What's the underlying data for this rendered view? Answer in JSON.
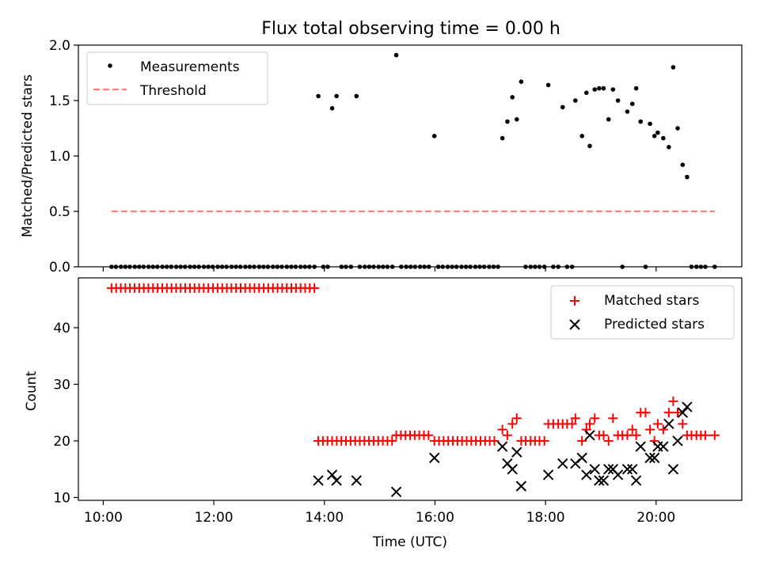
{
  "chart_data": [
    {
      "type": "scatter",
      "title": "Flux total observing time = 0.00 h",
      "xlabel": "",
      "ylabel": "Matched/Predicted stars",
      "xlim": [
        9.55,
        21.55
      ],
      "ylim": [
        0.0,
        2.0
      ],
      "yticks": [
        0.0,
        0.5,
        1.0,
        1.5,
        2.0
      ],
      "ytick_labels": [
        "0.0",
        "0.5",
        "1.0",
        "1.5",
        "2.0"
      ],
      "legend_position": "upper-left",
      "series": [
        {
          "name": "Measurements",
          "kind": "points",
          "color": "#000000",
          "points": [
            [
              13.89,
              1.54
            ],
            [
              14.14,
              1.43
            ],
            [
              14.22,
              1.54
            ],
            [
              14.58,
              1.54
            ],
            [
              15.3,
              1.91
            ],
            [
              15.99,
              1.18
            ],
            [
              17.22,
              1.16
            ],
            [
              17.31,
              1.31
            ],
            [
              17.4,
              1.53
            ],
            [
              17.48,
              1.33
            ],
            [
              17.56,
              1.67
            ],
            [
              18.05,
              1.64
            ],
            [
              18.31,
              1.44
            ],
            [
              18.54,
              1.5
            ],
            [
              18.66,
              1.18
            ],
            [
              18.74,
              1.57
            ],
            [
              18.8,
              1.09
            ],
            [
              18.89,
              1.6
            ],
            [
              18.97,
              1.61
            ],
            [
              19.05,
              1.61
            ],
            [
              19.14,
              1.33
            ],
            [
              19.22,
              1.6
            ],
            [
              19.31,
              1.5
            ],
            [
              19.48,
              1.4
            ],
            [
              19.57,
              1.47
            ],
            [
              19.64,
              1.61
            ],
            [
              19.72,
              1.31
            ],
            [
              19.89,
              1.29
            ],
            [
              19.97,
              1.18
            ],
            [
              20.03,
              1.21
            ],
            [
              20.13,
              1.16
            ],
            [
              20.23,
              1.08
            ],
            [
              20.31,
              1.8
            ],
            [
              20.39,
              1.25
            ],
            [
              20.48,
              0.92
            ],
            [
              20.56,
              0.81
            ]
          ],
          "zero_points_x": [
            10.15,
            10.23,
            10.32,
            10.4,
            10.48,
            10.57,
            10.65,
            10.73,
            10.82,
            10.9,
            10.98,
            11.07,
            11.15,
            11.23,
            11.32,
            11.4,
            11.48,
            11.57,
            11.65,
            11.73,
            11.82,
            11.9,
            11.98,
            12.07,
            12.15,
            12.23,
            12.32,
            12.4,
            12.48,
            12.57,
            12.65,
            12.73,
            12.82,
            12.9,
            12.98,
            13.07,
            13.15,
            13.23,
            13.32,
            13.4,
            13.48,
            13.57,
            13.65,
            13.73,
            13.82,
            13.98,
            14.06,
            14.31,
            14.39,
            14.48,
            14.64,
            14.73,
            14.81,
            14.89,
            14.98,
            15.06,
            15.14,
            15.23,
            15.39,
            15.48,
            15.56,
            15.64,
            15.73,
            15.81,
            15.89,
            16.06,
            16.14,
            16.23,
            16.31,
            16.39,
            16.48,
            16.56,
            16.64,
            16.73,
            16.81,
            16.89,
            16.98,
            17.06,
            17.14,
            17.64,
            17.73,
            17.81,
            17.89,
            17.98,
            18.14,
            18.23,
            18.39,
            18.48,
            19.39,
            19.81,
            20.64,
            20.73,
            20.81,
            20.89,
            21.06
          ]
        },
        {
          "name": "Threshold",
          "kind": "dashed-line",
          "color": "#ff7f7f",
          "x": [
            10.15,
            21.06
          ],
          "y": [
            0.5,
            0.5
          ]
        }
      ]
    },
    {
      "type": "scatter",
      "title": "",
      "xlabel": "Time (UTC)",
      "ylabel": "Count",
      "xlim": [
        9.55,
        21.55
      ],
      "ylim": [
        9.5,
        48.8
      ],
      "yticks": [
        10,
        20,
        30,
        40
      ],
      "ytick_labels": [
        "10",
        "20",
        "30",
        "40"
      ],
      "xticks": [
        10,
        12,
        14,
        16,
        18,
        20
      ],
      "xtick_labels": [
        "10:00",
        "12:00",
        "14:00",
        "16:00",
        "18:00",
        "20:00"
      ],
      "legend_position": "upper-right",
      "series": [
        {
          "name": "Matched stars",
          "kind": "plus",
          "color": "#ff0000",
          "constant_runs": [
            {
              "from": 10.15,
              "to": 13.82,
              "step": 0.0834,
              "y": 47
            },
            {
              "from": 13.89,
              "to": 15.23,
              "step": 0.0834,
              "y": 20
            },
            {
              "from": 15.3,
              "to": 15.89,
              "step": 0.0834,
              "y": 21
            },
            {
              "from": 15.99,
              "to": 17.14,
              "step": 0.0834,
              "y": 20
            }
          ],
          "points": [
            [
              17.22,
              22
            ],
            [
              17.31,
              21
            ],
            [
              17.4,
              23
            ],
            [
              17.48,
              24
            ],
            [
              17.56,
              20
            ],
            [
              17.64,
              20
            ],
            [
              17.73,
              20
            ],
            [
              17.81,
              20
            ],
            [
              17.89,
              20
            ],
            [
              17.98,
              20
            ],
            [
              18.05,
              23
            ],
            [
              18.14,
              23
            ],
            [
              18.23,
              23
            ],
            [
              18.31,
              23
            ],
            [
              18.39,
              23
            ],
            [
              18.48,
              23
            ],
            [
              18.54,
              24
            ],
            [
              18.66,
              20
            ],
            [
              18.74,
              22
            ],
            [
              18.8,
              23
            ],
            [
              18.89,
              24
            ],
            [
              18.97,
              21
            ],
            [
              19.05,
              21
            ],
            [
              19.14,
              20
            ],
            [
              19.22,
              24
            ],
            [
              19.31,
              21
            ],
            [
              19.39,
              21
            ],
            [
              19.48,
              21
            ],
            [
              19.57,
              22
            ],
            [
              19.64,
              21
            ],
            [
              19.72,
              25
            ],
            [
              19.81,
              25
            ],
            [
              19.89,
              22
            ],
            [
              19.97,
              20
            ],
            [
              20.03,
              23
            ],
            [
              20.13,
              22
            ],
            [
              20.23,
              25
            ],
            [
              20.31,
              27
            ],
            [
              20.39,
              25
            ],
            [
              20.48,
              23
            ],
            [
              20.56,
              21
            ],
            [
              20.64,
              21
            ],
            [
              20.73,
              21
            ],
            [
              20.81,
              21
            ],
            [
              20.89,
              21
            ],
            [
              21.06,
              21
            ]
          ]
        },
        {
          "name": "Predicted stars",
          "kind": "x",
          "color": "#000000",
          "points": [
            [
              13.89,
              13
            ],
            [
              14.14,
              14
            ],
            [
              14.22,
              13
            ],
            [
              14.58,
              13
            ],
            [
              15.3,
              11
            ],
            [
              15.99,
              17
            ],
            [
              17.22,
              19
            ],
            [
              17.31,
              16
            ],
            [
              17.4,
              15
            ],
            [
              17.48,
              18
            ],
            [
              17.56,
              12
            ],
            [
              18.05,
              14
            ],
            [
              18.31,
              16
            ],
            [
              18.54,
              16
            ],
            [
              18.66,
              17
            ],
            [
              18.74,
              14
            ],
            [
              18.8,
              21
            ],
            [
              18.89,
              15
            ],
            [
              18.97,
              13
            ],
            [
              19.05,
              13
            ],
            [
              19.14,
              15
            ],
            [
              19.22,
              15
            ],
            [
              19.31,
              14
            ],
            [
              19.48,
              15
            ],
            [
              19.57,
              15
            ],
            [
              19.64,
              13
            ],
            [
              19.72,
              19
            ],
            [
              19.89,
              17
            ],
            [
              19.97,
              17
            ],
            [
              20.03,
              19
            ],
            [
              20.13,
              19
            ],
            [
              20.23,
              23
            ],
            [
              20.31,
              15
            ],
            [
              20.39,
              20
            ],
            [
              20.48,
              25
            ],
            [
              20.56,
              26
            ]
          ]
        }
      ]
    }
  ]
}
